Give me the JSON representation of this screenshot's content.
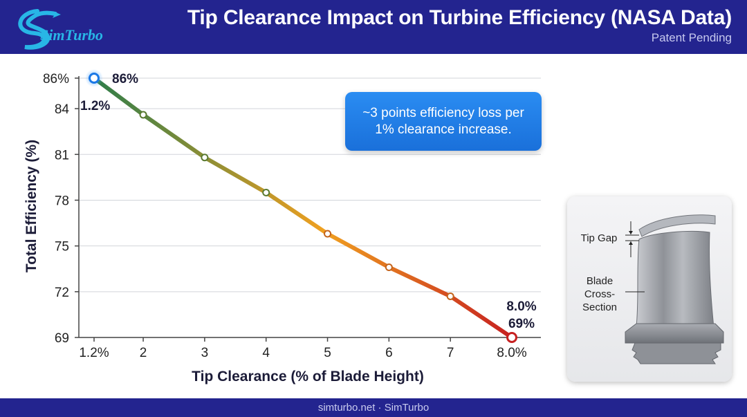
{
  "header": {
    "logo_text": "SimTurbo",
    "title": "Tip Clearance Impact on Turbine Efficiency (NASA Data)",
    "subtitle": "Patent Pending"
  },
  "colors": {
    "header_bg": "#23248f",
    "line_start": "#2e7d4a",
    "line_mid": "#f0a020",
    "line_end": "#c62020",
    "callout_bg": "#1a78e6",
    "highlight_point": "#1a78e6",
    "end_point": "#c62020"
  },
  "chart_data": {
    "type": "line",
    "title": "",
    "xlabel": "Tip Clearance (% of Blade Height)",
    "ylabel": "Total Efficiency (%)",
    "x": [
      1.2,
      2,
      3,
      4,
      5,
      6,
      7,
      8.0
    ],
    "x_tick_labels": [
      "1.2%",
      "2",
      "3",
      "4",
      "5",
      "6",
      "7",
      "8.0%"
    ],
    "y": [
      86,
      83.6,
      80.8,
      78.5,
      75.8,
      73.6,
      71.7,
      69
    ],
    "ylim": [
      69,
      86
    ],
    "y_ticks": [
      69,
      72,
      75,
      78,
      81,
      84,
      86
    ],
    "y_tick_labels": [
      "69",
      "72",
      "75",
      "78",
      "81",
      "84",
      "86%"
    ],
    "grid": true,
    "annotations": {
      "start_value": "86%",
      "start_clearance": "1.2%",
      "end_clearance": "8.0%",
      "end_value": "69%"
    }
  },
  "callout": {
    "text": "~3 points efficiency loss per 1% clearance increase."
  },
  "blade_card": {
    "tip_gap_label": "Tip Gap",
    "cross_section_label_1": "Blade",
    "cross_section_label_2": "Cross-",
    "cross_section_label_3": "Section"
  },
  "footer": {
    "text": "simturbo.net · SimTurbo"
  }
}
